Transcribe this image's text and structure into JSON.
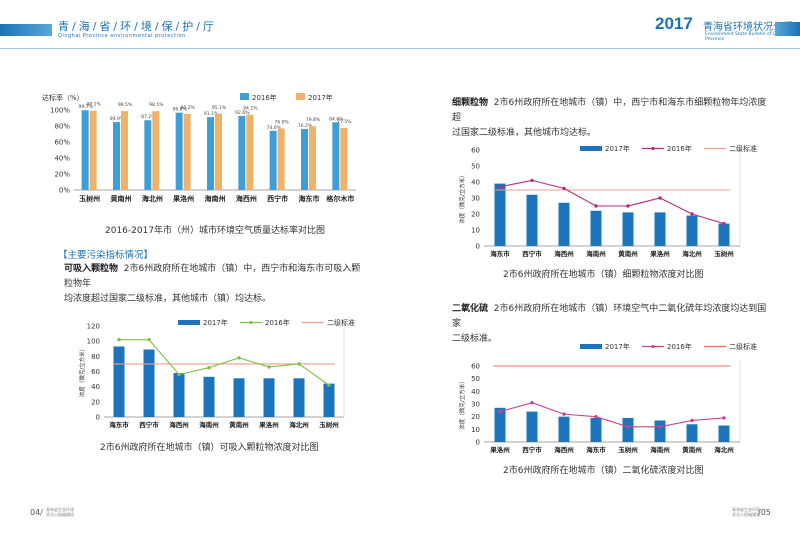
{
  "header": {
    "left_title": "青/海/省/环/境/保/护/厅",
    "left_subtitle": "Qinghai Province environmental protection",
    "right_year": "2017",
    "right_title": "青海省环境状况公报",
    "right_subtitle": "Environment State Bulletin of Qinghai Province"
  },
  "chart1": {
    "caption": "2016-2017年市（州）城市环境空气质量达标率对比图",
    "chart_data": {
      "type": "bar",
      "ylabel": "达标率（%）",
      "ylim": [
        0,
        100
      ],
      "yticks": [
        "0%",
        "20%",
        "40%",
        "60%",
        "80%",
        "100%"
      ],
      "legend": [
        "2016年",
        "2017年"
      ],
      "categories": [
        "玉树州",
        "黄南州",
        "海北州",
        "果洛州",
        "海南州",
        "海西州",
        "西宁市",
        "海东市",
        "格尔木市"
      ],
      "series": [
        {
          "name": "2016年",
          "values": [
            99.7,
            84.9,
            87.2,
            96.6,
            91.1,
            92.6,
            74.0,
            76.2,
            84.6
          ],
          "labels": [
            "99.7%",
            "84.9%",
            "87.2%",
            "96.6%",
            "91.1%",
            "92.6%",
            "74.0%",
            "76.2%",
            "84.6%"
          ]
        },
        {
          "name": "2017年",
          "values": [
            99.1,
            98.5,
            98.5,
            95.2,
            95.1,
            94.1,
            76.9,
            79.8,
            77.5
          ],
          "labels": [
            "99.1%",
            "98.5%",
            "98.5%",
            "95.2%",
            "95.1%",
            "94.1%",
            "76.9%",
            "79.8%",
            "77.5%"
          ]
        }
      ],
      "colors": [
        "#3f9fd4",
        "#f0b26a"
      ]
    }
  },
  "section": {
    "heading": "【主要污染指标情况】",
    "pm10_term": "可吸入颗粒物",
    "pm10_text_line1": "2市6州政府所在地城市（镇）中，西宁市和海东市可吸入颗粒物年",
    "pm10_text_line2": "均浓度超过国家二级标准，其他城市（镇）均达标。",
    "pm25_term": "细颗粒物",
    "pm25_text_line1": "2市6州政府所在地城市（镇）中，西宁市和海东市细颗粒物年均浓度超",
    "pm25_text_line2": "过国家二级标准，其他城市均达标。",
    "so2_term": "二氧化硫",
    "so2_text_line1": "2市6州政府所在地城市（镇）环境空气中二氧化硫年均浓度均达到国家",
    "so2_text_line2": "二级标准。"
  },
  "chart2": {
    "caption": "2市6州政府所在地城市（镇）可吸入颗粒物浓度对比图",
    "chart_data": {
      "type": "bar",
      "ylabel": "浓度（微克/立方米）",
      "ylim": [
        0,
        120
      ],
      "yticks": [
        "0",
        "20",
        "40",
        "60",
        "80",
        "100",
        "120"
      ],
      "legend": [
        "2017年",
        "2016年",
        "二级标准"
      ],
      "categories": [
        "海东市",
        "西宁市",
        "海西州",
        "海南州",
        "黄南州",
        "果洛州",
        "海北州",
        "玉树州"
      ],
      "series": [
        {
          "name": "2017年",
          "type": "bar",
          "values": [
            93,
            89,
            58,
            53,
            51,
            51,
            51,
            44
          ]
        },
        {
          "name": "2016年",
          "type": "line",
          "values": [
            102,
            102,
            56,
            65,
            78,
            66,
            70,
            42
          ]
        },
        {
          "name": "二级标准",
          "type": "line",
          "values": [
            70,
            70,
            70,
            70,
            70,
            70,
            70,
            70
          ]
        }
      ],
      "colors": [
        "#1c75bc",
        "#7cc142",
        "#e8a090"
      ]
    }
  },
  "chart3": {
    "caption": "2市6州政府所在地城市（镇）细颗粒物浓度对比图",
    "chart_data": {
      "type": "bar",
      "ylabel": "浓度（微克/立方米）",
      "ylim": [
        0,
        60
      ],
      "yticks": [
        "0",
        "10",
        "20",
        "30",
        "40",
        "50",
        "60"
      ],
      "legend": [
        "2017年",
        "2016年",
        "二级标准"
      ],
      "categories": [
        "海东市",
        "西宁市",
        "海西州",
        "海南州",
        "黄南州",
        "果洛州",
        "海北州",
        "玉树州"
      ],
      "series": [
        {
          "name": "2017年",
          "type": "bar",
          "values": [
            39,
            32,
            27,
            22,
            21,
            21,
            19,
            14
          ]
        },
        {
          "name": "2016年",
          "type": "line",
          "values": [
            37,
            41,
            36,
            25,
            25,
            30,
            20,
            14
          ]
        },
        {
          "name": "二级标准",
          "type": "line",
          "values": [
            35,
            35,
            35,
            35,
            35,
            35,
            35,
            35
          ]
        }
      ],
      "colors": [
        "#1c75bc",
        "#b32d7b",
        "#e8a090"
      ]
    }
  },
  "chart4": {
    "caption": "2市6州政府所在地城市（镇）二氧化硫浓度对比图",
    "chart_data": {
      "type": "bar",
      "ylabel": "浓度（微克/立方米）",
      "ylim": [
        0,
        60
      ],
      "yticks": [
        "0",
        "10",
        "20",
        "30",
        "40",
        "50",
        "60"
      ],
      "legend": [
        "2017年",
        "2016年",
        "二级标准"
      ],
      "categories": [
        "果洛州",
        "西宁市",
        "海西州",
        "海东市",
        "玉树州",
        "海南州",
        "黄南州",
        "海北州"
      ],
      "series": [
        {
          "name": "2017年",
          "type": "bar",
          "values": [
            27,
            24,
            20,
            19,
            19,
            17,
            14,
            13
          ]
        },
        {
          "name": "2016年",
          "type": "line",
          "values": [
            24,
            31,
            22,
            20,
            12,
            12,
            17,
            19
          ]
        },
        {
          "name": "二级标准",
          "type": "line",
          "values": [
            60,
            60,
            60,
            60,
            60,
            60,
            60,
            60
          ]
        }
      ],
      "colors": [
        "#1c75bc",
        "#d23f8f",
        "#e8725d"
      ]
    }
  },
  "footer": {
    "left_page": "04/",
    "left_small_1": "青海省生态环境",
    "left_small_2": "状况公报编辑组",
    "right_small_1": "青海省生态环境",
    "right_small_2": "状况公报编辑组",
    "right_page": "/05"
  }
}
